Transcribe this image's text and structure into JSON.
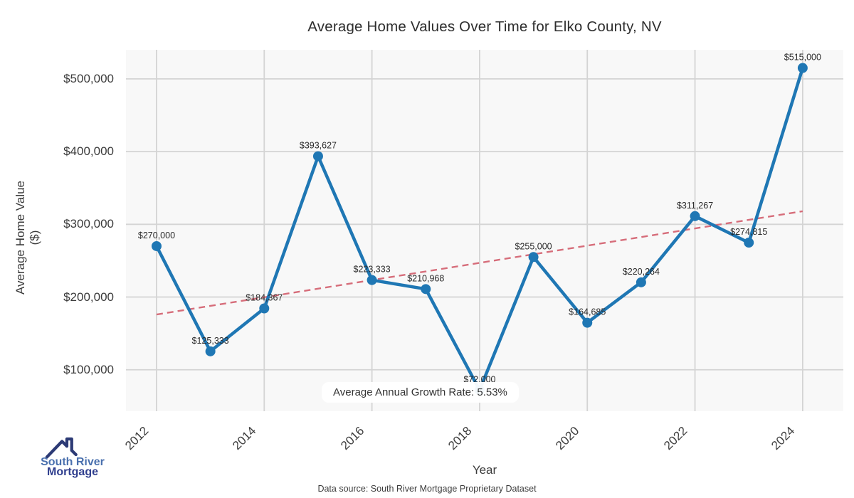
{
  "header": {
    "title": "Average Home Values Over Time for Elko County, NV"
  },
  "chart_data": {
    "type": "line",
    "title": "Average Home Values Over Time for Elko County, NV",
    "xlabel": "Year",
    "ylabel": "Average Home Value ($)",
    "x": [
      2012,
      2013,
      2014,
      2015,
      2016,
      2017,
      2018,
      2019,
      2020,
      2021,
      2022,
      2023,
      2024
    ],
    "values": [
      270000,
      125333,
      184367,
      393627,
      223333,
      210968,
      72000,
      255000,
      164685,
      220264,
      311267,
      274815,
      515000
    ],
    "point_labels": [
      "$270,000",
      "$125,333",
      "$184,367",
      "$393,627",
      "$223,333",
      "$210,968",
      "$72,000",
      "$255,000",
      "$164,685",
      "$220,264",
      "$311,267",
      "$274,815",
      "$515,000"
    ],
    "x_ticks": [
      2012,
      2014,
      2016,
      2018,
      2020,
      2022,
      2024
    ],
    "y_ticks": [
      {
        "label": "$100,000",
        "value": 100000
      },
      {
        "label": "$200,000",
        "value": 200000
      },
      {
        "label": "$300,000",
        "value": 300000
      },
      {
        "label": "$400,000",
        "value": 400000
      },
      {
        "label": "$500,000",
        "value": 500000
      }
    ],
    "xlim": [
      2011.432,
      2024.755
    ],
    "ylim": [
      43000,
      540000
    ],
    "grid": true,
    "legend": false,
    "line_color": "#1f77b4",
    "marker_color": "#1f77b4",
    "grid_color": "#d4d4d4",
    "plot_bg_color": "#f8f8f8",
    "trend_line": {
      "style": "dashed",
      "color": "#d66d7a",
      "start_value": 176000,
      "end_value": 318000
    },
    "annotation": "Average Annual Growth Rate: 5.53%"
  },
  "footer": {
    "text": "Data source: South River Mortgage Proprietary Dataset"
  },
  "logo": {
    "name_line1": "South River",
    "name_line2": "Mortgage"
  }
}
